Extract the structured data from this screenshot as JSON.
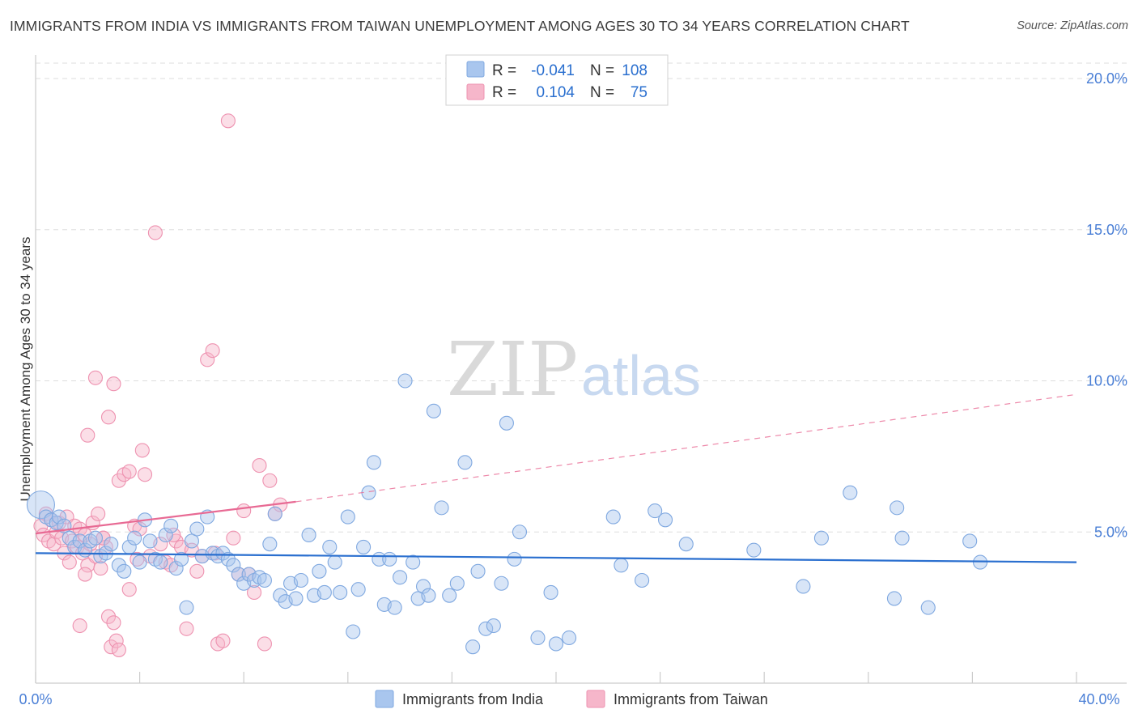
{
  "title": "IMMIGRANTS FROM INDIA VS IMMIGRANTS FROM TAIWAN UNEMPLOYMENT AMONG AGES 30 TO 34 YEARS CORRELATION CHART",
  "source": "Source: ZipAtlas.com",
  "watermark": {
    "part1": "ZIP",
    "part2": "atlas"
  },
  "legend_top": {
    "rows": [
      {
        "r_label": "R =",
        "r_value": "-0.041",
        "n_label": "N =",
        "n_value": "108"
      },
      {
        "r_label": "R =",
        "r_value": "0.104",
        "n_label": "N =",
        "n_value": "75"
      }
    ]
  },
  "legend_bottom": [
    "Immigrants from India",
    "Immigrants from Taiwan"
  ],
  "colors": {
    "india_fill": "#a9c6ee",
    "india_stroke": "#7fa8e0",
    "india_line": "#2a6fcf",
    "taiwan_fill": "#f6b6ca",
    "taiwan_stroke": "#ee92b0",
    "taiwan_line": "#e86a94",
    "axis_text": "#4a7fd6",
    "grid": "#dddddd"
  },
  "chart_data": {
    "type": "scatter",
    "title": "IMMIGRANTS FROM INDIA VS IMMIGRANTS FROM TAIWAN UNEMPLOYMENT AMONG AGES 30 TO 34 YEARS CORRELATION CHART",
    "xlabel": "",
    "ylabel": "Unemployment Among Ages 30 to 34 years",
    "xlim": [
      0,
      40
    ],
    "ylim": [
      0,
      20.5
    ],
    "x_tick_labels": [
      "0.0%",
      "40.0%"
    ],
    "y_ticks": [
      5,
      10,
      15,
      20
    ],
    "y_tick_labels": [
      "5.0%",
      "10.0%",
      "15.0%",
      "20.0%"
    ],
    "grid": true,
    "series": [
      {
        "name": "Immigrants from India",
        "r": -0.041,
        "n": 108,
        "trend": {
          "x0": 0,
          "y0": 4.3,
          "x1": 40,
          "y1": 4.0,
          "dashed_from": null
        },
        "points": [
          [
            0.2,
            5.9,
            "L"
          ],
          [
            0.4,
            5.5
          ],
          [
            0.6,
            5.4
          ],
          [
            0.8,
            5.3
          ],
          [
            0.9,
            5.5
          ],
          [
            1.1,
            5.2
          ],
          [
            1.3,
            4.8
          ],
          [
            1.5,
            4.5
          ],
          [
            1.7,
            4.7
          ],
          [
            1.9,
            4.4
          ],
          [
            2.1,
            4.7
          ],
          [
            2.3,
            4.8
          ],
          [
            2.5,
            4.2
          ],
          [
            2.7,
            4.3
          ],
          [
            2.9,
            4.6
          ],
          [
            3.2,
            3.9
          ],
          [
            3.4,
            3.7
          ],
          [
            3.6,
            4.5
          ],
          [
            3.8,
            4.8
          ],
          [
            4.0,
            4.0
          ],
          [
            4.2,
            5.4
          ],
          [
            4.4,
            4.7
          ],
          [
            4.6,
            4.1
          ],
          [
            4.8,
            4.0
          ],
          [
            5.0,
            4.9
          ],
          [
            5.2,
            5.2
          ],
          [
            5.4,
            3.8
          ],
          [
            5.6,
            4.1
          ],
          [
            5.8,
            2.5
          ],
          [
            6.0,
            4.7
          ],
          [
            6.2,
            5.1
          ],
          [
            6.4,
            4.2
          ],
          [
            6.6,
            5.5
          ],
          [
            6.8,
            4.3
          ],
          [
            7.0,
            4.2
          ],
          [
            7.2,
            4.3
          ],
          [
            7.4,
            4.1
          ],
          [
            7.6,
            3.9
          ],
          [
            7.8,
            3.6
          ],
          [
            8.0,
            3.3
          ],
          [
            8.2,
            3.6
          ],
          [
            8.4,
            3.4
          ],
          [
            8.6,
            3.5
          ],
          [
            8.8,
            3.4
          ],
          [
            9.0,
            4.6
          ],
          [
            9.2,
            5.6
          ],
          [
            9.4,
            2.9
          ],
          [
            9.6,
            2.7
          ],
          [
            9.8,
            3.3
          ],
          [
            10.0,
            2.8
          ],
          [
            10.2,
            3.4
          ],
          [
            10.5,
            4.9
          ],
          [
            10.7,
            2.9
          ],
          [
            10.9,
            3.7
          ],
          [
            11.1,
            3.0
          ],
          [
            11.3,
            4.5
          ],
          [
            11.5,
            4.0
          ],
          [
            11.7,
            3.0
          ],
          [
            12.0,
            5.5
          ],
          [
            12.2,
            1.7
          ],
          [
            12.4,
            3.1
          ],
          [
            12.6,
            4.5
          ],
          [
            12.8,
            6.3
          ],
          [
            13.0,
            7.3
          ],
          [
            13.2,
            4.1
          ],
          [
            13.4,
            2.6
          ],
          [
            13.6,
            4.1
          ],
          [
            13.8,
            2.5
          ],
          [
            14.0,
            3.5
          ],
          [
            14.2,
            10.0
          ],
          [
            14.5,
            4.0
          ],
          [
            14.7,
            2.8
          ],
          [
            14.9,
            3.2
          ],
          [
            15.1,
            2.9
          ],
          [
            15.3,
            9.0
          ],
          [
            15.6,
            5.8
          ],
          [
            15.9,
            2.9
          ],
          [
            16.2,
            3.3
          ],
          [
            16.5,
            7.3
          ],
          [
            16.8,
            1.2
          ],
          [
            17.0,
            3.7
          ],
          [
            17.3,
            1.8
          ],
          [
            17.6,
            1.9
          ],
          [
            17.9,
            3.3
          ],
          [
            18.1,
            8.6
          ],
          [
            18.4,
            4.1
          ],
          [
            18.6,
            5.0
          ],
          [
            19.3,
            1.5
          ],
          [
            19.8,
            3.0
          ],
          [
            20.0,
            1.3
          ],
          [
            20.5,
            1.5
          ],
          [
            22.2,
            5.5
          ],
          [
            22.5,
            3.9
          ],
          [
            23.3,
            3.4
          ],
          [
            23.8,
            5.7
          ],
          [
            24.2,
            5.4
          ],
          [
            25.0,
            4.6
          ],
          [
            27.6,
            4.4
          ],
          [
            29.5,
            3.2
          ],
          [
            30.2,
            4.8
          ],
          [
            31.3,
            6.3
          ],
          [
            33.0,
            2.8
          ],
          [
            33.1,
            5.8
          ],
          [
            33.3,
            4.8
          ],
          [
            34.3,
            2.5
          ],
          [
            35.9,
            4.7
          ],
          [
            36.3,
            4.0
          ]
        ]
      },
      {
        "name": "Immigrants from Taiwan",
        "r": 0.104,
        "n": 75,
        "trend": {
          "x0": 0,
          "y0": 4.95,
          "x1": 10,
          "y1": 6.0,
          "dashed_to_x": 40,
          "dashed_to_y": 9.55
        },
        "points": [
          [
            0.2,
            5.2
          ],
          [
            0.3,
            4.9
          ],
          [
            0.4,
            5.6
          ],
          [
            0.5,
            4.7
          ],
          [
            0.6,
            5.4
          ],
          [
            0.7,
            4.6
          ],
          [
            0.8,
            5.0
          ],
          [
            0.9,
            5.3
          ],
          [
            1.0,
            4.8
          ],
          [
            1.1,
            4.3
          ],
          [
            1.2,
            5.5
          ],
          [
            1.3,
            4.0
          ],
          [
            1.4,
            4.7
          ],
          [
            1.5,
            5.2
          ],
          [
            1.6,
            4.5
          ],
          [
            1.7,
            5.1
          ],
          [
            1.8,
            4.3
          ],
          [
            1.9,
            4.9
          ],
          [
            2.0,
            3.9
          ],
          [
            2.1,
            4.6
          ],
          [
            2.2,
            5.3
          ],
          [
            2.3,
            4.2
          ],
          [
            2.4,
            5.6
          ],
          [
            2.5,
            3.8
          ],
          [
            2.6,
            4.8
          ],
          [
            2.7,
            4.5
          ],
          [
            2.8,
            2.2
          ],
          [
            2.9,
            1.2
          ],
          [
            3.0,
            2.0
          ],
          [
            3.1,
            1.4
          ],
          [
            3.2,
            1.1
          ],
          [
            1.7,
            1.9
          ],
          [
            2.0,
            8.2
          ],
          [
            2.3,
            10.1
          ],
          [
            2.8,
            8.8
          ],
          [
            3.0,
            9.9
          ],
          [
            3.2,
            6.7
          ],
          [
            3.4,
            6.9
          ],
          [
            3.6,
            7.0
          ],
          [
            3.8,
            5.2
          ],
          [
            4.0,
            5.1
          ],
          [
            4.1,
            7.7
          ],
          [
            4.2,
            6.9
          ],
          [
            4.4,
            4.2
          ],
          [
            4.6,
            14.9
          ],
          [
            4.8,
            4.6
          ],
          [
            5.0,
            4.0
          ],
          [
            5.2,
            3.9
          ],
          [
            5.4,
            4.7
          ],
          [
            5.6,
            4.5
          ],
          [
            5.8,
            1.8
          ],
          [
            6.0,
            4.4
          ],
          [
            6.2,
            3.7
          ],
          [
            6.4,
            4.2
          ],
          [
            6.6,
            10.7
          ],
          [
            6.8,
            11.0
          ],
          [
            7.0,
            1.3
          ],
          [
            7.2,
            1.4
          ],
          [
            7.4,
            18.6
          ],
          [
            7.6,
            4.8
          ],
          [
            7.8,
            3.6
          ],
          [
            8.0,
            5.7
          ],
          [
            8.2,
            3.6
          ],
          [
            8.4,
            3.0
          ],
          [
            8.6,
            7.2
          ],
          [
            8.8,
            1.3
          ],
          [
            9.0,
            6.7
          ],
          [
            9.2,
            5.6
          ],
          [
            9.4,
            5.9
          ],
          [
            3.6,
            3.1
          ],
          [
            2.6,
            4.8
          ],
          [
            1.9,
            3.6
          ],
          [
            3.9,
            4.1
          ],
          [
            5.3,
            4.9
          ],
          [
            6.9,
            4.3
          ]
        ]
      }
    ]
  }
}
